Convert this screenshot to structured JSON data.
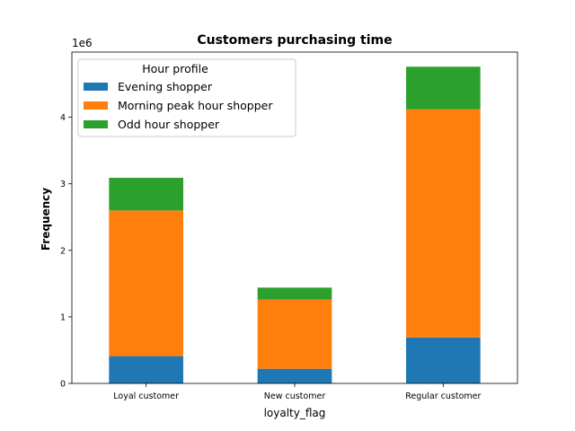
{
  "chart_data": {
    "type": "bar",
    "stacked": true,
    "title": "Customers purchasing time",
    "xlabel": "loyalty_flag",
    "ylabel": "Frequency",
    "y_offset_label": "1e6",
    "y_ticks": [
      0,
      1,
      2,
      3,
      4
    ],
    "ylim": [
      0,
      4.98
    ],
    "categories": [
      "Loyal customer",
      "New customer",
      "Regular customer"
    ],
    "series": [
      {
        "name": "Evening shopper",
        "color": "#1f77b4",
        "values": [
          0.41,
          0.22,
          0.69
        ]
      },
      {
        "name": "Morning peak hour shopper",
        "color": "#ff7f0e",
        "values": [
          2.19,
          1.04,
          3.43
        ]
      },
      {
        "name": "Odd hour shopper",
        "color": "#2ca02c",
        "values": [
          0.49,
          0.18,
          0.64
        ]
      }
    ],
    "legend": {
      "title": "Hour profile",
      "placement": "top-left"
    },
    "grid": false
  }
}
